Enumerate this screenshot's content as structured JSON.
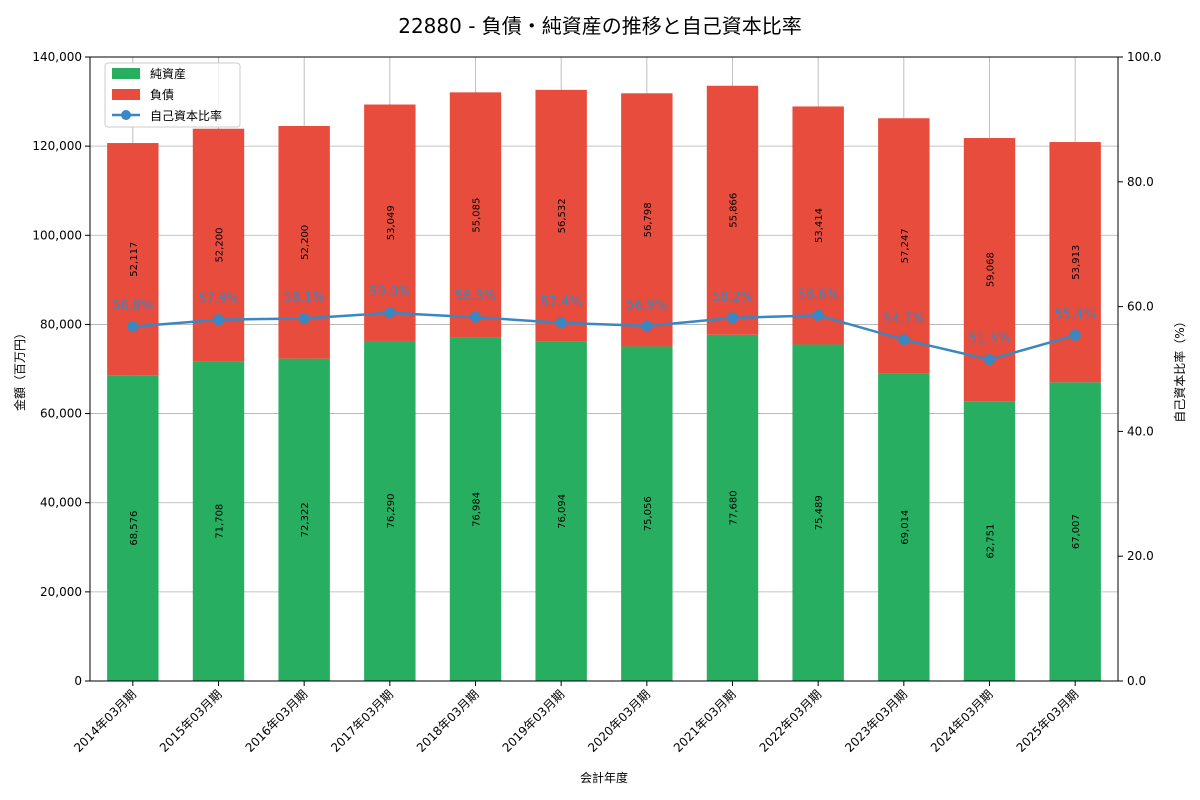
{
  "chart_data": {
    "type": "bar",
    "title": "22880 - 負債・純資産の推移と自己資本比率",
    "xlabel": "会計年度",
    "ylabel": "金額（百万円）",
    "y2label": "自己資本比率（%）",
    "ylim": [
      0,
      140000
    ],
    "y2lim": [
      0,
      100
    ],
    "yticks": [
      "0",
      "20,000",
      "40,000",
      "60,000",
      "80,000",
      "100,000",
      "120,000",
      "140,000"
    ],
    "y2ticks": [
      "0.0",
      "20.0",
      "40.0",
      "60.0",
      "80.0",
      "100.0"
    ],
    "grid": true,
    "legend": "top-left",
    "categories": [
      "2014年03月期",
      "2015年03月期",
      "2016年03月期",
      "2017年03月期",
      "2018年03月期",
      "2019年03月期",
      "2020年03月期",
      "2021年03月期",
      "2022年03月期",
      "2023年03月期",
      "2024年03月期",
      "2025年03月期"
    ],
    "series": [
      {
        "name": "純資産",
        "kind": "bar",
        "color": "#27ae60",
        "values": [
          68576,
          71708,
          72322,
          76290,
          76984,
          76094,
          75056,
          77680,
          75489,
          69014,
          62751,
          67007
        ],
        "labels": [
          "68,576",
          "71,708",
          "72,322",
          "76,290",
          "76,984",
          "76,094",
          "75,056",
          "77,680",
          "75,489",
          "69,014",
          "62,751",
          "67,007"
        ]
      },
      {
        "name": "負債",
        "kind": "bar",
        "color": "#e74c3c",
        "values": [
          52117,
          52200,
          52200,
          53049,
          55085,
          56532,
          56798,
          55866,
          53414,
          57247,
          59068,
          53913
        ],
        "labels": [
          "52,117",
          "52,200",
          "52,200",
          "53,049",
          "55,085",
          "56,532",
          "56,798",
          "55,866",
          "53,414",
          "57,247",
          "59,068",
          "53,913"
        ]
      },
      {
        "name": "自己資本比率",
        "kind": "line",
        "axis": "right",
        "color": "#3a87c2",
        "values": [
          56.8,
          57.9,
          58.1,
          59.0,
          58.3,
          57.4,
          56.9,
          58.2,
          58.6,
          54.7,
          51.5,
          55.4
        ],
        "labels": [
          "56.8%",
          "57.9%",
          "58.1%",
          "59.0%",
          "58.3%",
          "57.4%",
          "56.9%",
          "58.2%",
          "58.6%",
          "54.7%",
          "51.5%",
          "55.4%"
        ]
      }
    ]
  }
}
